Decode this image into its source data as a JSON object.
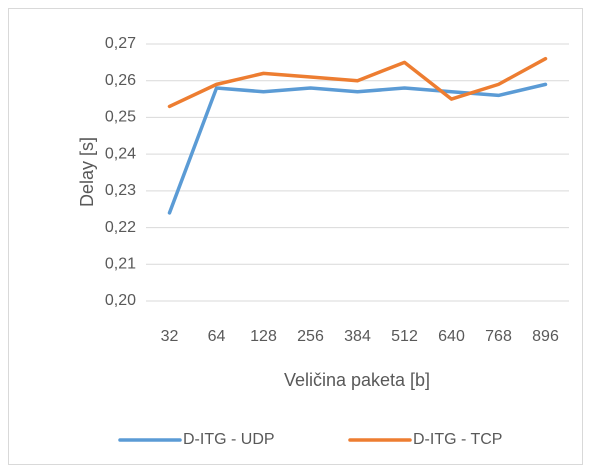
{
  "chart_data": {
    "type": "line",
    "categories": [
      "32",
      "64",
      "128",
      "256",
      "384",
      "512",
      "640",
      "768",
      "896"
    ],
    "series": [
      {
        "name": "D-ITG - UDP",
        "color": "#5b9bd5",
        "values": [
          0.224,
          0.258,
          0.257,
          0.258,
          0.257,
          0.258,
          0.257,
          0.256,
          0.259
        ]
      },
      {
        "name": "D-ITG - TCP",
        "color": "#ed7d31",
        "values": [
          0.253,
          0.259,
          0.262,
          0.261,
          0.26,
          0.265,
          0.255,
          0.259,
          0.266
        ]
      }
    ],
    "xlabel": "Veličina paketa [b]",
    "ylabel": "Delay [s]",
    "ylim": [
      0.2,
      0.27
    ],
    "yticks": [
      {
        "value": 0.2,
        "label": "0,20"
      },
      {
        "value": 0.21,
        "label": "0,21"
      },
      {
        "value": 0.22,
        "label": "0,22"
      },
      {
        "value": 0.23,
        "label": "0,23"
      },
      {
        "value": 0.24,
        "label": "0,24"
      },
      {
        "value": 0.25,
        "label": "0,25"
      },
      {
        "value": 0.26,
        "label": "0,26"
      },
      {
        "value": 0.27,
        "label": "0,27"
      }
    ],
    "grid": true,
    "legend": "bottom"
  }
}
